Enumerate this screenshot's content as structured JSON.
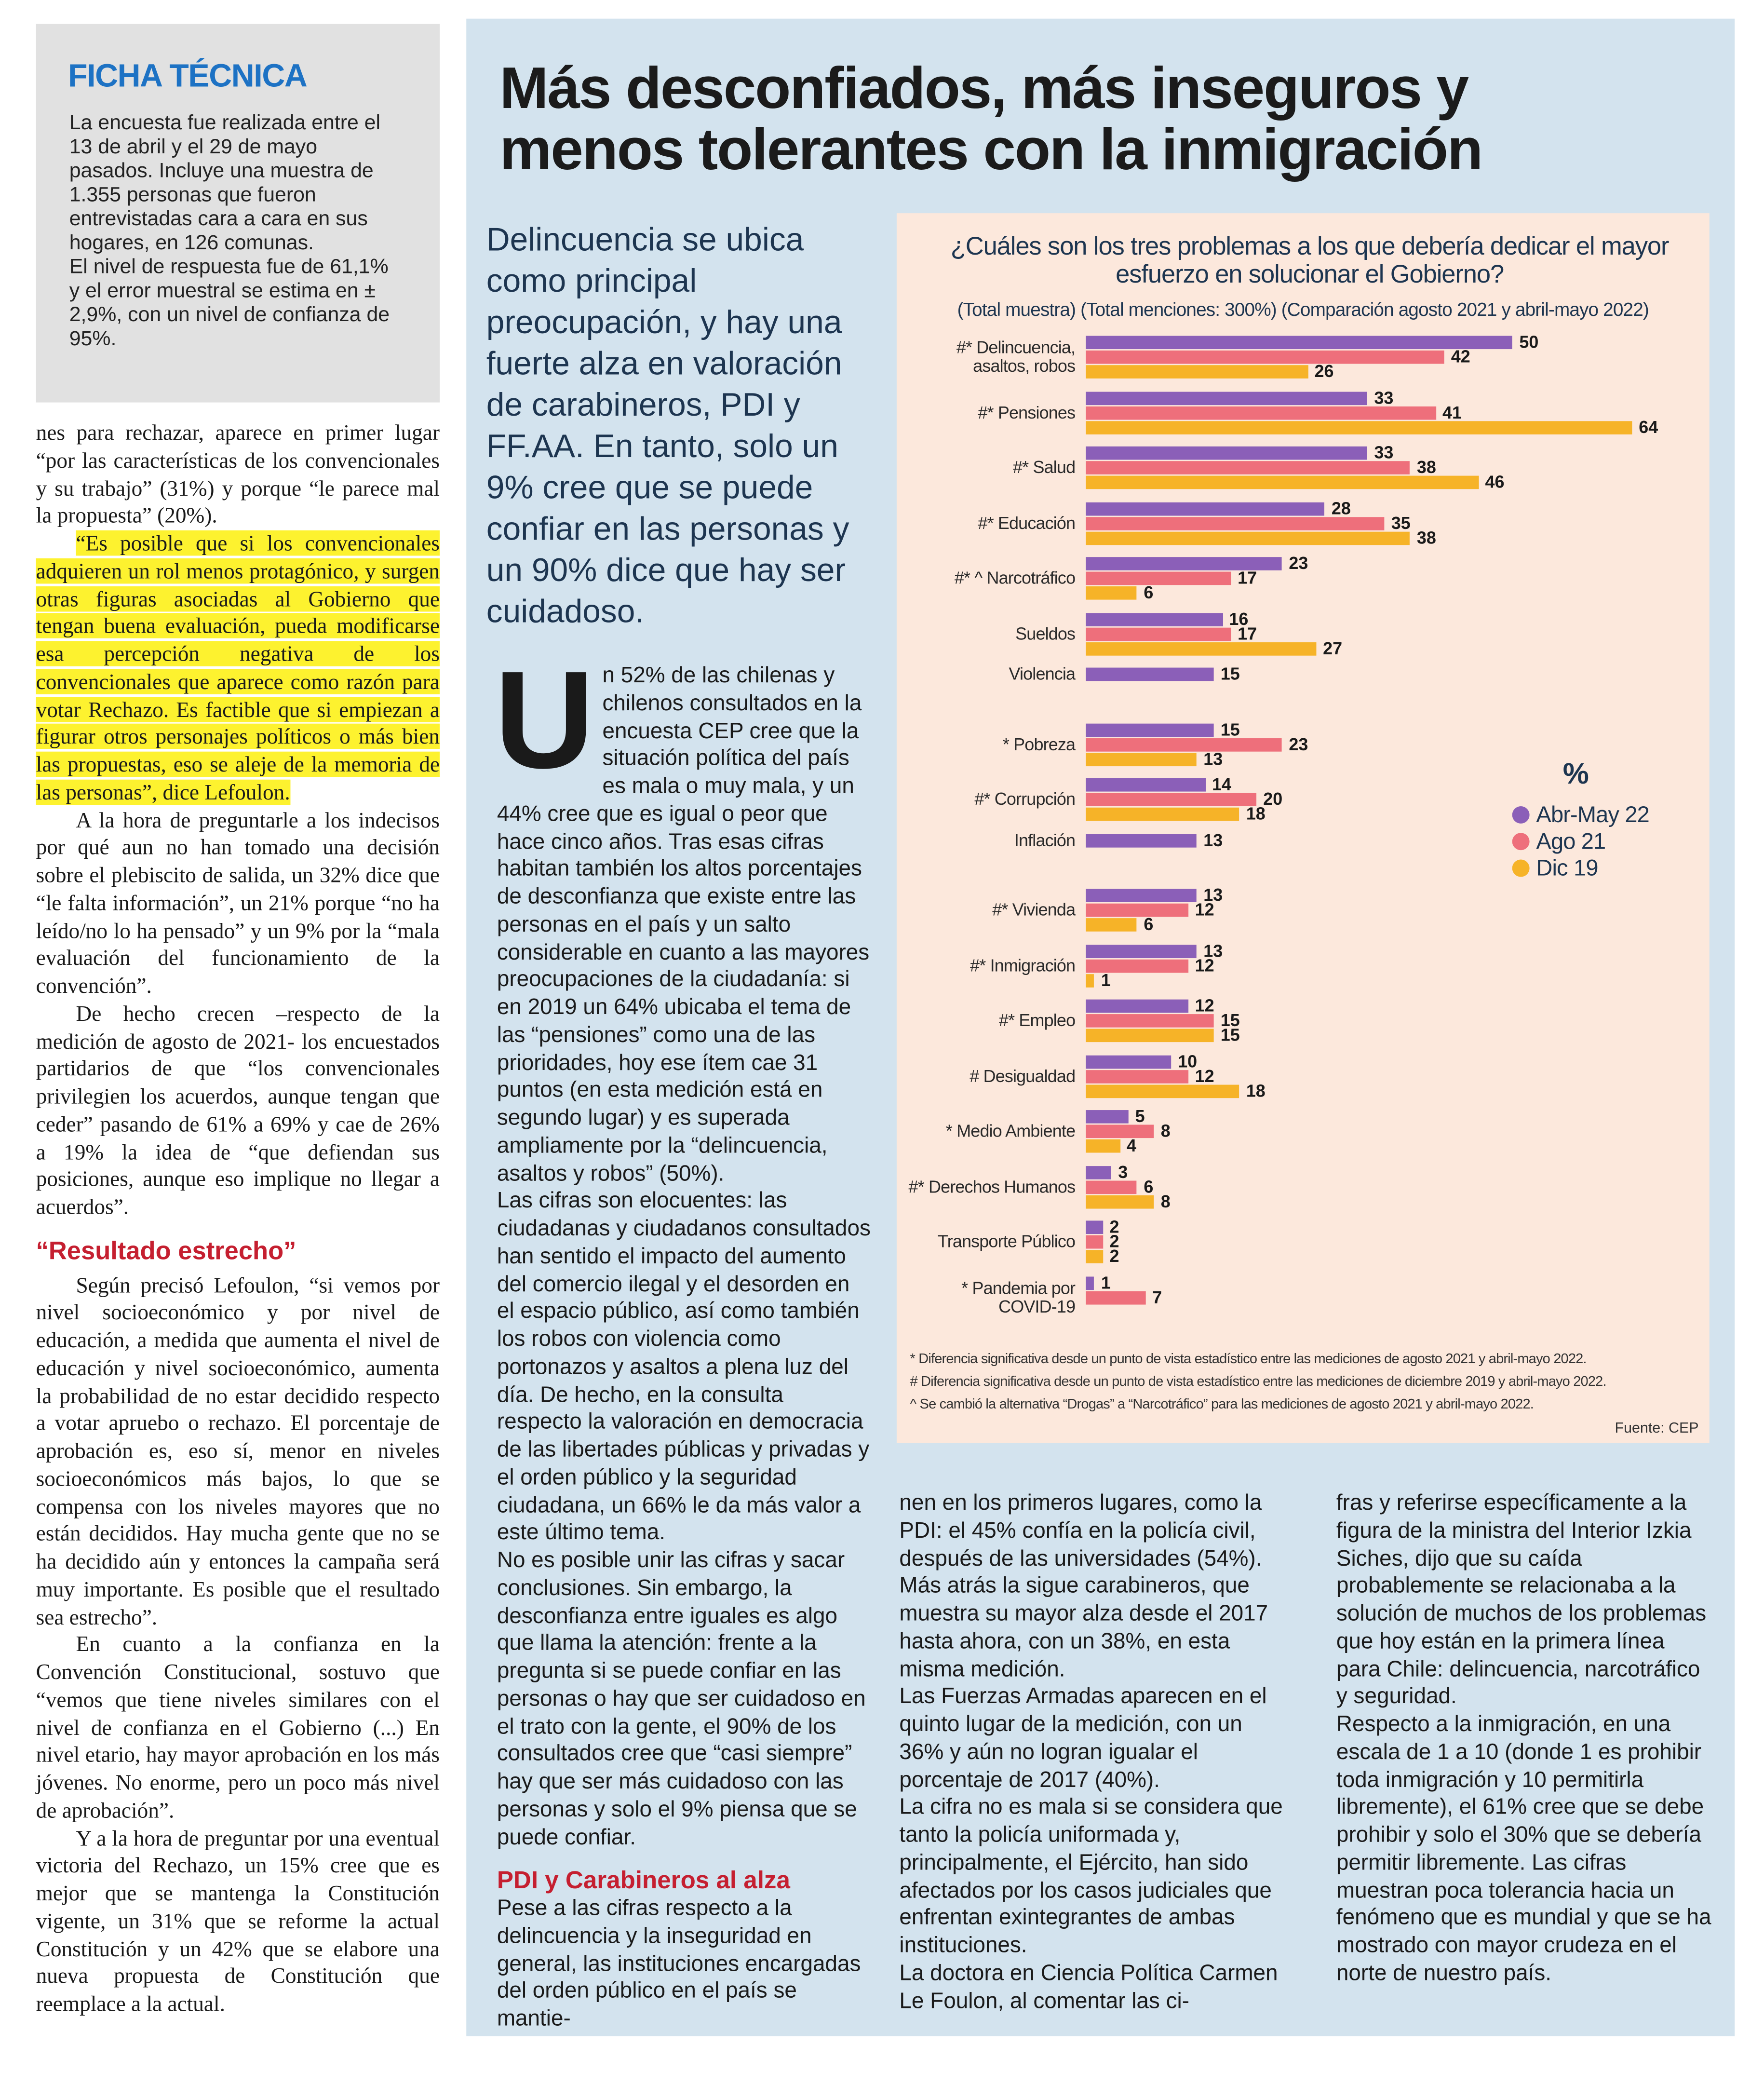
{
  "ficha": {
    "title": "FICHA TÉCNICA",
    "paragraphs": [
      "La encuesta fue realizada entre el 13 de abril y el 29 de mayo pasados. Incluye una muestra de 1.355 personas que fueron entrevistadas cara a cara en sus hogares, en 126 comunas.",
      "El nivel de respuesta fue de 61,1% y el error muestral se estima en ± 2,9%, con un nivel de confianza de 95%."
    ]
  },
  "left_column": {
    "paragraphs": [
      "nes para rechazar, aparece en primer lugar “por las características de los convencionales y su trabajo” (31%) y porque “le parece mal la propuesta” (20%).",
      "“Es posible que si los convencionales adquieren un rol menos protagónico, y surgen otras figuras asociadas al Gobierno que tengan buena evaluación, pueda modificarse esa percepción negativa de los convencionales que aparece como razón para votar Rechazo. Es factible que si empiezan a figurar otros personajes políticos o más bien las propuestas, eso se aleje de la memoria de las personas”, dice Lefoulon.",
      "A la hora de preguntarle a los indecisos por qué aun no han tomado una decisión sobre el plebiscito de salida, un 32% dice que “le falta información”, un 21% porque “no ha leído/no lo ha pensado” y un 9% por la “mala evaluación del funcionamiento de la convención”.",
      "De hecho crecen –respecto de la medición de agosto de 2021- los encuestados partidarios de que “los convencionales privilegien los acuerdos, aunque tengan que ceder” pasando de 61% a 69% y cae de 26% a 19% la idea de “que defiendan sus posiciones, aunque eso implique no llegar a acuerdos”."
    ],
    "heading": "“Resultado estrecho”",
    "paragraphs_after": [
      "Según precisó Lefoulon, “si vemos por nivel socioeconómico y por nivel de educación, a medida que aumenta el nivel de educación y nivel socioeconómico, aumenta la probabilidad de no estar decidido respecto a votar apruebo o rechazo. El porcentaje de aprobación es, eso sí, menor en niveles socioeconómicos más bajos, lo que se compensa con los niveles mayores que no están decididos. Hay mucha gente que no se ha decidido aún y entonces la campaña será muy importante. Es posible que el resultado sea estrecho”.",
      "En cuanto a la confianza en la Convención Constitucional, sostuvo que “vemos que tiene niveles similares con el nivel de confianza en el Gobierno (...) En nivel etario, hay mayor aprobación en los más jóvenes. No enorme, pero un poco más nivel de aprobación”.",
      "Y a la hora de preguntar por una eventual victoria del Rechazo, un 15% cree que es mejor que se mantenga la Constitución vigente, un 31% que se reforme la actual Constitución y un 42% que se elabore una nueva propuesta de Constitución que reemplace a la actual."
    ]
  },
  "headline": "Más desconfiados, más inseguros y menos tolerantes con la inmigración",
  "lead": "Delincuencia se ubica como principal preocupación, y hay una fuerte alza en valoración de carabineros, PDI y FF.AA. En tanto, solo un 9% cree que se puede confiar en las personas y un 90% dice que hay ser cuidadoso.",
  "article": {
    "drop_cap": "U",
    "column_1": {
      "paragraphs": [
        "n 52% de las chilenas y chilenos consultados en la encuesta CEP cree que la situación política del país es mala o muy mala, y un 44% cree que es igual o peor que hace cinco años. Tras esas cifras habitan también los altos porcentajes de desconfianza que existe entre las personas en el país y un salto considerable en cuanto a las mayores preocupaciones de la ciudadanía: si en 2019 un 64% ubicaba el tema de las “pensiones” como una de las prioridades, hoy ese ítem cae 31 puntos (en esta medición está en segundo lugar) y es superada ampliamente por la “delincuencia, asaltos y robos” (50%).",
        "Las cifras son elocuentes: las ciudadanas y ciudadanos consultados han sentido el impacto del aumento del comercio ilegal y el desorden en el espacio público, así como también los robos con violencia como portonazos y asaltos a plena luz del día. De hecho, en la consulta respecto la valoración en democracia de las libertades públicas y privadas y el orden público y la seguridad ciudadana, un 66% le da más valor a este último tema.",
        "No es posible unir las cifras y sacar conclusiones. Sin embargo, la desconfianza entre iguales es algo que llama la atención: frente a la pregunta si se puede confiar en las personas o hay que ser cuidadoso en el trato con la gente, el 90% de los consultados cree que “casi siempre” hay que ser más cuidadoso con las personas y solo el 9% piensa que se puede confiar."
      ],
      "heading": "PDI y Carabineros al alza",
      "paragraphs_after": [
        "Pese a las cifras respecto a la delincuencia y la inseguridad en general, las instituciones encargadas del orden público en el país se mantie-"
      ]
    },
    "column_2": {
      "paragraphs": [
        "nen en los primeros lugares, como la PDI: el 45% confía en la policía civil, después de las universidades (54%). Más atrás la sigue carabineros, que muestra su mayor alza desde el 2017 hasta ahora, con un 38%, en esta misma medición.",
        "Las Fuerzas Armadas aparecen en el quinto lugar de la medición, con un 36% y aún no logran igualar el porcentaje de 2017 (40%).",
        "La cifra no es mala si se considera que tanto la policía uniformada y, principalmente, el Ejército, han sido afectados por los casos judiciales que enfrentan exintegrantes de ambas instituciones.",
        "La doctora en Ciencia Política Carmen Le Foulon, al comentar las ci-"
      ]
    },
    "column_3": {
      "paragraphs": [
        "fras y referirse específicamente a la figura de la ministra del Interior Izkia Siches, dijo que su caída probablemente se relacionaba a la solución de muchos de los problemas que hoy están en la primera línea para Chile: delincuencia, narcotráfico y seguridad.",
        "Respecto a la inmigración, en una escala de 1 a 10 (donde 1 es prohibir toda inmigración y 10 permitirla libremente), el 61% cree que se debe prohibir y solo el 30% que se debería permitir libremente. Las cifras muestran poca tolerancia hacia un fenómeno que es mundial y que se ha mostrado con mayor crudeza en el norte de nuestro país."
      ]
    }
  },
  "chart_data": {
    "type": "barh",
    "title": "¿Cuáles son los tres problemas a los que debería dedicar el mayor esfuerzo en solucionar el Gobierno?",
    "subtitle": "(Total muestra) (Total menciones: 300%) (Comparación agosto 2021 y abril-mayo 2022)",
    "categories": [
      "#* Delincuencia, asaltos, robos",
      "#* Pensiones",
      "#* Salud",
      "#* Educación",
      "#* ^ Narcotráfico",
      "Sueldos",
      "Violencia",
      "* Pobreza",
      "#* Corrupción",
      "Inflación",
      "#* Vivienda",
      "#* Inmigración",
      "#* Empleo",
      "# Desigualdad",
      "* Medio Ambiente",
      "#* Derechos Humanos",
      "Transporte Público",
      "* Pandemia por COVID-19"
    ],
    "series": [
      {
        "name": "Abr-May 22",
        "color": "#8b5fb8",
        "values": [
          50,
          33,
          33,
          28,
          23,
          16,
          15,
          15,
          14,
          13,
          13,
          13,
          12,
          10,
          5,
          3,
          2,
          1
        ]
      },
      {
        "name": "Ago 21",
        "color": "#ee6f7b",
        "values": [
          42,
          41,
          38,
          35,
          17,
          17,
          null,
          23,
          20,
          null,
          12,
          12,
          15,
          12,
          8,
          6,
          2,
          7
        ]
      },
      {
        "name": "Dic 19",
        "color": "#f6b328",
        "values": [
          26,
          64,
          46,
          38,
          6,
          27,
          null,
          13,
          18,
          null,
          6,
          1,
          15,
          18,
          4,
          8,
          2,
          null
        ]
      }
    ],
    "legend_title": "%",
    "legend": "right",
    "footnotes": [
      "* Diferencia significativa desde un punto de vista estadístico entre las mediciones de agosto 2021 y abril-mayo 2022.",
      "# Diferencia significativa desde un punto de vista estadístico entre las mediciones de diciembre 2019 y abril-mayo 2022.",
      "^ Se cambió la alternativa “Drogas” a “Narcotráfico” para las mediciones de agosto 2021 y abril-mayo 2022."
    ],
    "source": "Fuente: CEP"
  }
}
